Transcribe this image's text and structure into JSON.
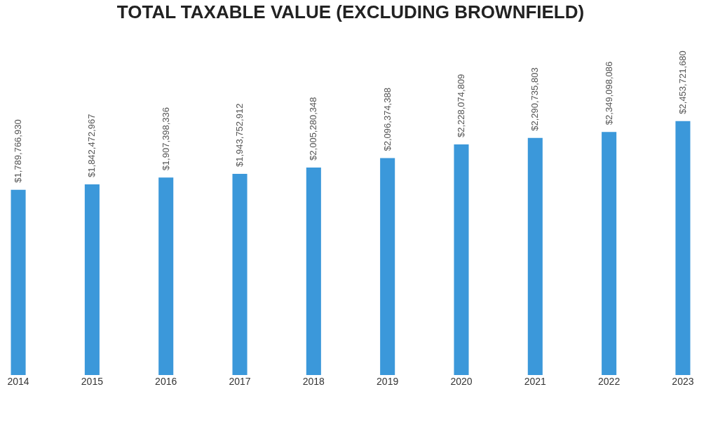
{
  "chart_data": {
    "type": "bar",
    "title": "TOTAL TAXABLE VALUE (EXCLUDING BROWNFIELD)",
    "categories": [
      "2014",
      "2015",
      "2016",
      "2017",
      "2018",
      "2019",
      "2020",
      "2021",
      "2022",
      "2023"
    ],
    "values": [
      1789766930,
      1842472967,
      1907398336,
      1943752912,
      2005280348,
      2096374388,
      2228074809,
      2290735803,
      2349098086,
      2453721680
    ],
    "value_labels": [
      "$1,789,766,930",
      "$1,842,472,967",
      "$1,907,398,336",
      "$1,943,752,912",
      "$2,005,280,348",
      "$2,096,374,388",
      "$2,228,074,809",
      "$2,290,735,803",
      "$2,349,098,086",
      "$2,453,721,680"
    ],
    "color": "#3b98da"
  }
}
